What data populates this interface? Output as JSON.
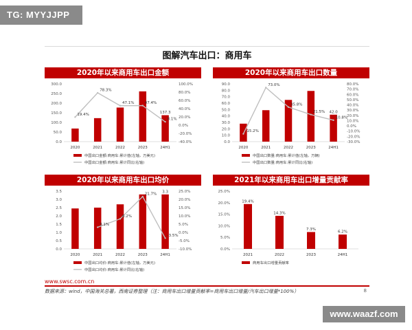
{
  "watermark_tl": "TG: MYYJJPP",
  "watermark_br": "www.waazf.com",
  "main_title": "图解汽车出口：商用车",
  "footer": {
    "url": "www.swsc.com.cn",
    "source": "数据来源：wind，中国海关总署，西南证券整理（注：商用车出口增量贡献率=商用车出口增量/汽车出口增量*100%）",
    "page": "8"
  },
  "colors": {
    "bar": "#c00000",
    "line": "#bfbfbf"
  },
  "chart_data": [
    {
      "type": "bar+line",
      "title": "2020年以来商用车出口金额",
      "categories": [
        "2020",
        "2021",
        "2022",
        "2023",
        "24H1"
      ],
      "ylim": [
        0,
        300
      ],
      "yticks": [
        0,
        50,
        100,
        150,
        200,
        250,
        300
      ],
      "ytick_labels": [
        "0.0",
        "50.0",
        "100.0",
        "150.0",
        "200.0",
        "250.0",
        "300.0"
      ],
      "y2lim": [
        -40,
        100
      ],
      "y2ticks": [
        -40,
        -20,
        0,
        20,
        40,
        60,
        80,
        100
      ],
      "y2tick_labels": [
        "-40.0%",
        "-20.0%",
        "0.0%",
        "20.0%",
        "40.0%",
        "60.0%",
        "80.0%",
        "100.0%"
      ],
      "series": [
        {
          "name": "中国出口金额:商用车:累计值(左轴，万美元)",
          "kind": "bar",
          "values": [
            68,
            122,
            177,
            261,
            137.3
          ],
          "labels": [
            "",
            "",
            "",
            "",
            "137.3"
          ]
        },
        {
          "name": "中国出口金额:商用车:累计同比(右轴)",
          "kind": "line",
          "values": [
            19.4,
            78.3,
            47.1,
            47.4,
            8.1
          ],
          "labels": [
            "19.4%",
            "78.3%",
            "47.1%",
            "47.4%",
            "8.1%"
          ]
        }
      ]
    },
    {
      "type": "bar+line",
      "title": "2020年以来商用车出口数量",
      "categories": [
        "2020",
        "2021",
        "2022",
        "2023",
        "24H1"
      ],
      "ylim": [
        0,
        90
      ],
      "yticks": [
        0,
        10,
        20,
        30,
        40,
        50,
        60,
        70,
        80,
        90
      ],
      "ytick_labels": [
        "0.0",
        "10.0",
        "20.0",
        "30.0",
        "40.0",
        "50.0",
        "60.0",
        "70.0",
        "80.0",
        "90.0"
      ],
      "y2lim": [
        -30,
        80
      ],
      "y2ticks": [
        -30,
        -20,
        -10,
        0,
        10,
        20,
        30,
        40,
        50,
        60,
        70,
        80
      ],
      "y2tick_labels": [
        "-30.0%",
        "-20.0%",
        "-10.0%",
        "0.0%",
        "10.0%",
        "20.0%",
        "30.0%",
        "40.0%",
        "50.0%",
        "60.0%",
        "70.0%",
        "80.0%"
      ],
      "series": [
        {
          "name": "中国出口数量:商用车:累计值(左轴，万辆)",
          "kind": "bar",
          "values": [
            28,
            49,
            65,
            79,
            42.0
          ],
          "labels": [
            "",
            "",
            "",
            "",
            "42.0"
          ]
        },
        {
          "name": "中国出口数量:商用车:累计同比(右轴)",
          "kind": "line",
          "values": [
            -15.2,
            73.0,
            35.8,
            21.5,
            10.8
          ],
          "labels": [
            "-15.2%",
            "73.0%",
            "35.8%",
            "21.5%",
            "10.8%"
          ]
        }
      ]
    },
    {
      "type": "bar+line",
      "title": "2020年以来商用车出口均价",
      "categories": [
        "2020",
        "2021",
        "2022",
        "2023",
        "24H1"
      ],
      "ylim": [
        0,
        3.5
      ],
      "yticks": [
        0,
        0.5,
        1,
        1.5,
        2,
        2.5,
        3,
        3.5
      ],
      "ytick_labels": [
        "0.0",
        "0.5",
        "1.0",
        "1.5",
        "2.0",
        "2.5",
        "3.0",
        "3.5"
      ],
      "y2lim": [
        -10,
        25
      ],
      "y2ticks": [
        -10,
        -5,
        0,
        5,
        10,
        15,
        20,
        25
      ],
      "y2tick_labels": [
        "-10.0%",
        "-5.0%",
        "0.0%",
        "5.0%",
        "10.0%",
        "15.0%",
        "20.0%",
        "25.0%"
      ],
      "series": [
        {
          "name": "中国出口均价:商用车:累计值(左轴，万美元)",
          "kind": "bar",
          "values": [
            2.45,
            2.5,
            2.7,
            3.3,
            3.3
          ],
          "labels": [
            "",
            "",
            "",
            "",
            "3.3"
          ]
        },
        {
          "name": "中国出口均价:商用车:累计同比(右轴)",
          "kind": "line",
          "values": [
            null,
            3.1,
            8.2,
            21.7,
            -3.5
          ],
          "labels": [
            "",
            "3.1%",
            "8.2%",
            "21.7%",
            "-3.5%"
          ]
        }
      ]
    },
    {
      "type": "bar",
      "title": "2021年以来商用车出口增量贡献率",
      "categories": [
        "2021",
        "2022",
        "2023",
        "24H1"
      ],
      "ylim": [
        0,
        25
      ],
      "yticks": [
        0,
        5,
        10,
        15,
        20,
        25
      ],
      "ytick_labels": [
        "0.0%",
        "5.0%",
        "10.0%",
        "15.0%",
        "20.0%",
        "25.0%"
      ],
      "series": [
        {
          "name": "商用车出口增量贡献率",
          "kind": "bar",
          "values": [
            19.4,
            14.3,
            7.3,
            6.2
          ],
          "labels": [
            "19.4%",
            "14.3%",
            "7.3%",
            "6.2%"
          ]
        }
      ]
    }
  ]
}
